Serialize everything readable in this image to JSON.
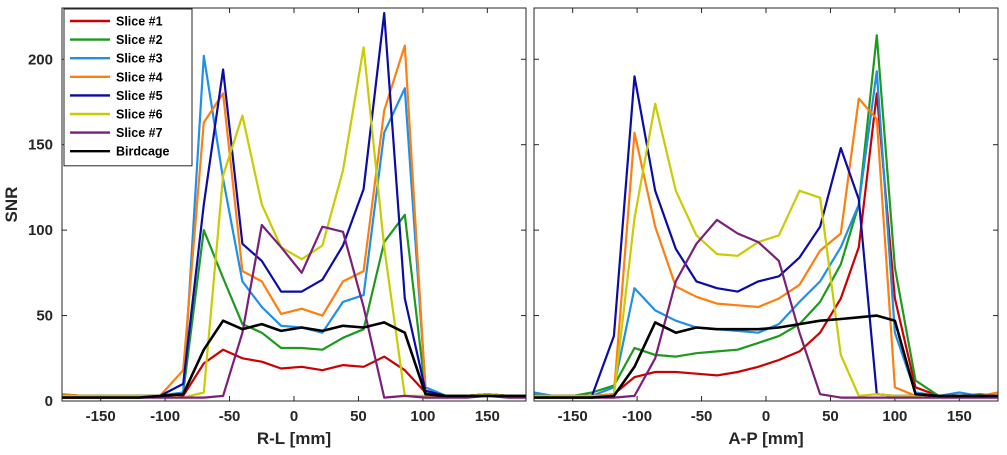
{
  "chart_data": [
    {
      "type": "line",
      "panel": "left",
      "xlabel": "R-L [mm]",
      "ylabel": "SNR",
      "xlim": [
        -180,
        180
      ],
      "ylim": [
        0,
        230
      ],
      "xticks": [
        -150,
        -100,
        -50,
        0,
        50,
        100,
        150
      ],
      "xtick_labels": [
        "-150",
        "-100",
        "-50",
        "0",
        "50",
        "100",
        "150"
      ],
      "yticks": [
        0,
        50,
        100,
        150,
        200
      ],
      "ytick_labels": [
        "0",
        "50",
        "100",
        "150",
        "200"
      ],
      "legend": "top-left",
      "x": [
        -180,
        -165,
        -150,
        -135,
        -120,
        -104,
        -86,
        -70,
        -55,
        -40,
        -25,
        -10,
        6,
        22,
        38,
        54,
        70,
        86,
        102,
        118,
        134,
        150,
        166,
        180
      ],
      "series": [
        {
          "name": "Slice #1",
          "color": "#cc0000",
          "values": [
            4,
            3,
            3,
            3,
            3,
            3,
            3,
            22,
            30,
            25,
            23,
            19,
            20,
            18,
            21,
            20,
            26,
            18,
            5,
            3,
            3,
            4,
            3,
            3
          ]
        },
        {
          "name": "Slice #2",
          "color": "#1c9a1c",
          "values": [
            3,
            3,
            3,
            3,
            3,
            3,
            5,
            100,
            72,
            45,
            40,
            31,
            31,
            30,
            37,
            42,
            93,
            109,
            5,
            3,
            3,
            4,
            3,
            3
          ]
        },
        {
          "name": "Slice #3",
          "color": "#1f8fe8",
          "values": [
            3,
            3,
            3,
            3,
            3,
            3,
            5,
            202,
            130,
            70,
            55,
            44,
            43,
            40,
            58,
            62,
            157,
            183,
            8,
            3,
            3,
            4,
            3,
            3
          ]
        },
        {
          "name": "Slice #4",
          "color": "#ff7f0e",
          "values": [
            4,
            3,
            3,
            3,
            3,
            3,
            18,
            163,
            180,
            76,
            70,
            51,
            54,
            50,
            70,
            76,
            170,
            208,
            6,
            3,
            3,
            4,
            3,
            3
          ]
        },
        {
          "name": "Slice #5",
          "color": "#0b0ba8",
          "values": [
            3,
            3,
            3,
            3,
            3,
            3,
            10,
            115,
            194,
            92,
            82,
            64,
            64,
            71,
            91,
            124,
            227,
            60,
            6,
            3,
            3,
            4,
            3,
            3
          ]
        },
        {
          "name": "Slice #6",
          "color": "#c8cc00",
          "values": [
            3,
            3,
            3,
            3,
            3,
            3,
            2,
            5,
            132,
            167,
            115,
            90,
            83,
            91,
            135,
            207,
            90,
            3,
            3,
            3,
            3,
            4,
            3,
            3
          ]
        },
        {
          "name": "Slice #7",
          "color": "#7a1f7a",
          "values": [
            2,
            2,
            2,
            2,
            2,
            2,
            2,
            2,
            3,
            40,
            103,
            90,
            75,
            102,
            99,
            55,
            2,
            3,
            2,
            2,
            2,
            3,
            2,
            2
          ]
        },
        {
          "name": "Birdcage",
          "color": "#000000",
          "values": [
            2,
            2,
            2,
            2,
            2,
            3,
            4,
            30,
            47,
            42,
            45,
            41,
            43,
            41,
            44,
            43,
            46,
            40,
            4,
            3,
            3,
            3,
            3,
            3
          ]
        }
      ]
    },
    {
      "type": "line",
      "panel": "right",
      "xlabel": "A-P [mm]",
      "ylabel": "",
      "xlim": [
        -180,
        180
      ],
      "ylim": [
        0,
        230
      ],
      "xticks": [
        -150,
        -100,
        -50,
        0,
        50,
        100,
        150
      ],
      "xtick_labels": [
        "-150",
        "-100",
        "-50",
        "0",
        "50",
        "100",
        "150"
      ],
      "yticks": [
        0,
        50,
        100,
        150,
        200
      ],
      "ytick_labels": [],
      "legend": "none",
      "x": [
        -180,
        -165,
        -150,
        -135,
        -118,
        -102,
        -86,
        -70,
        -54,
        -38,
        -22,
        -6,
        10,
        26,
        42,
        58,
        72,
        86,
        100,
        116,
        134,
        150,
        166,
        180
      ],
      "series": [
        {
          "name": "Slice #1",
          "color": "#cc0000",
          "values": [
            3,
            3,
            3,
            3,
            4,
            14,
            17,
            17,
            16,
            15,
            17,
            20,
            24,
            29,
            40,
            60,
            90,
            180,
            60,
            8,
            3,
            3,
            3,
            3
          ]
        },
        {
          "name": "Slice #2",
          "color": "#1c9a1c",
          "values": [
            4,
            3,
            3,
            5,
            9,
            31,
            27,
            26,
            28,
            29,
            30,
            34,
            38,
            45,
            58,
            80,
            115,
            214,
            78,
            12,
            3,
            3,
            4,
            3
          ]
        },
        {
          "name": "Slice #3",
          "color": "#1f8fe8",
          "values": [
            5,
            3,
            3,
            3,
            8,
            66,
            53,
            47,
            43,
            42,
            41,
            40,
            45,
            58,
            70,
            90,
            115,
            193,
            40,
            5,
            3,
            5,
            3,
            3
          ]
        },
        {
          "name": "Slice #4",
          "color": "#ff7f0e",
          "values": [
            3,
            3,
            3,
            3,
            4,
            157,
            102,
            67,
            61,
            57,
            56,
            55,
            60,
            68,
            88,
            98,
            177,
            165,
            8,
            3,
            3,
            3,
            3,
            5
          ]
        },
        {
          "name": "Slice #5",
          "color": "#0b0ba8",
          "values": [
            3,
            3,
            3,
            3,
            38,
            190,
            123,
            89,
            70,
            66,
            64,
            70,
            73,
            84,
            102,
            148,
            118,
            4,
            3,
            3,
            3,
            3,
            3,
            3
          ]
        },
        {
          "name": "Slice #6",
          "color": "#c8cc00",
          "values": [
            3,
            3,
            3,
            3,
            3,
            107,
            174,
            123,
            97,
            86,
            85,
            93,
            97,
            123,
            119,
            27,
            3,
            4,
            3,
            3,
            3,
            3,
            3,
            3
          ]
        },
        {
          "name": "Slice #7",
          "color": "#7a1f7a",
          "values": [
            2,
            2,
            2,
            2,
            2,
            3,
            25,
            70,
            92,
            106,
            98,
            93,
            82,
            40,
            4,
            2,
            2,
            2,
            2,
            2,
            2,
            2,
            2,
            2
          ]
        },
        {
          "name": "Birdcage",
          "color": "#000000",
          "values": [
            2,
            2,
            2,
            2,
            3,
            20,
            46,
            40,
            43,
            42,
            42,
            42,
            43,
            45,
            47,
            48,
            49,
            50,
            47,
            4,
            3,
            3,
            3,
            3
          ]
        }
      ]
    }
  ]
}
